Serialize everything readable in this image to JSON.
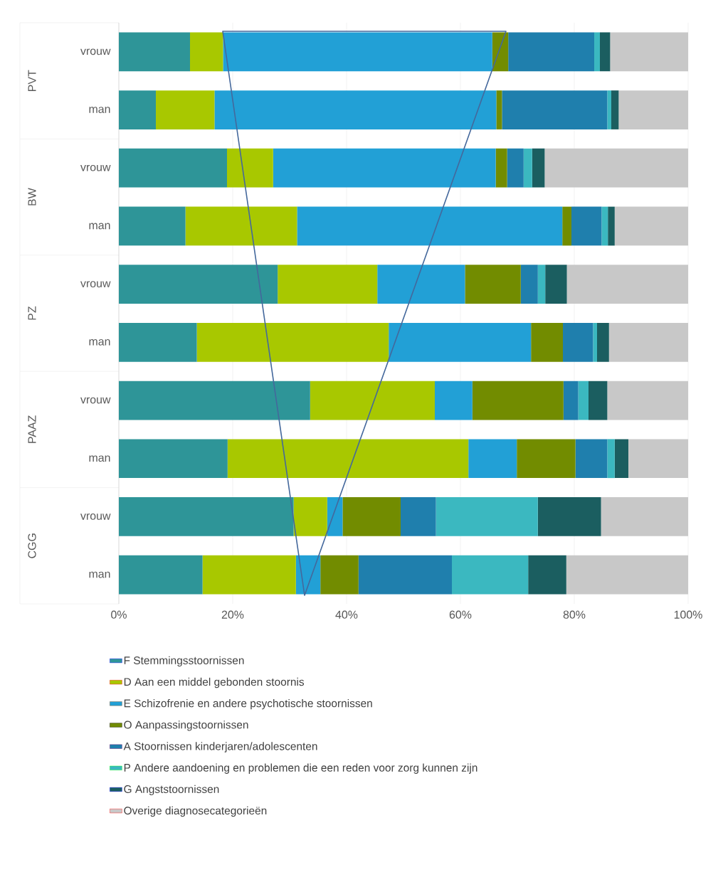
{
  "chart_data": {
    "type": "bar",
    "orientation": "horizontal",
    "stacked": true,
    "categories": [
      "vrouw",
      "man",
      "vrouw",
      "man",
      "vrouw",
      "man",
      "vrouw",
      "man",
      "vrouw",
      "man"
    ],
    "annotations": [
      "PVT",
      "BW",
      "PZ",
      "PAAZ",
      "CGG"
    ],
    "series": [
      {
        "name": "F Stemmingsstoornissen",
        "color": "#2e9598",
        "values": [
          12.5,
          6.5,
          19.0,
          11.7,
          27.9,
          13.7,
          33.6,
          19.1,
          30.7,
          14.7
        ]
      },
      {
        "name": "D Aan een middel gebonden stoornis",
        "color": "#a8c800",
        "values": [
          5.8,
          10.3,
          8.1,
          19.6,
          17.5,
          33.7,
          21.9,
          42.3,
          5.9,
          16.4
        ]
      },
      {
        "name": "E Schizofrenie en andere psychotische stoornissen",
        "color": "#22a0d6",
        "values": [
          47.3,
          49.5,
          39.1,
          46.6,
          15.4,
          25.0,
          6.6,
          8.5,
          2.7,
          4.3
        ]
      },
      {
        "name": "O Aanpassingstoornissen",
        "color": "#728c00",
        "values": [
          2.8,
          1.0,
          2.0,
          1.6,
          9.8,
          5.6,
          16.0,
          10.3,
          10.2,
          6.7
        ]
      },
      {
        "name": "A Stoornissen kinderjaren/adolescenten",
        "color": "#1f7fad",
        "values": [
          15.1,
          18.5,
          2.9,
          5.3,
          3.0,
          5.3,
          2.6,
          5.6,
          6.2,
          16.4
        ]
      },
      {
        "name": "P Andere aandoening en problemen die een reden voor zorg kunnen zijn",
        "color": "#3bb8c0",
        "values": [
          1.0,
          0.7,
          1.5,
          1.1,
          1.3,
          0.7,
          1.8,
          1.3,
          17.9,
          13.4
        ]
      },
      {
        "name": "G Angststoornissen",
        "color": "#1b5e60",
        "values": [
          1.8,
          1.3,
          2.2,
          1.2,
          3.8,
          2.1,
          3.3,
          2.4,
          11.1,
          6.7
        ]
      },
      {
        "name": "Overige diagnosecategorieën",
        "color": "#c8c8c8",
        "values": [
          13.7,
          12.2,
          25.2,
          12.9,
          21.3,
          13.9,
          14.2,
          10.5,
          15.3,
          21.4
        ]
      }
    ],
    "xlim": [
      0,
      100
    ],
    "xticks": [
      {
        "value": 0,
        "label": "0%"
      },
      {
        "value": 20,
        "label": "20%"
      },
      {
        "value": 40,
        "label": "40%"
      },
      {
        "value": 60,
        "label": "60%"
      },
      {
        "value": 80,
        "label": "80%"
      },
      {
        "value": 100,
        "label": "100%"
      }
    ],
    "grid": "x",
    "legend": "bottom"
  }
}
